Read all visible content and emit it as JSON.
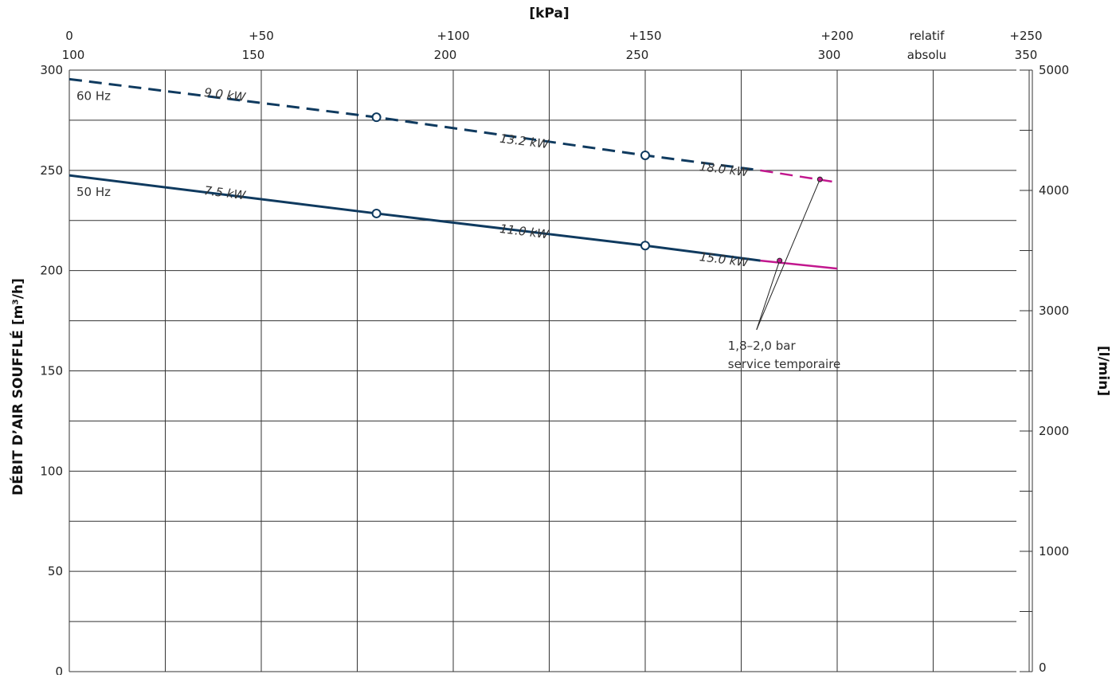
{
  "chart_data": {
    "type": "line",
    "title": "",
    "top_axis_title": "[kPa]",
    "ylabel": "DÉBIT D’AIR SOUFFLÉ  [m³/h]",
    "ylabel_right": "[l/min]",
    "xlim": [
      100,
      300
    ],
    "ylim": [
      0,
      300
    ],
    "ylim_right": [
      0,
      5000
    ],
    "grid": true,
    "x_ticks_relatif": [
      {
        "x": 100,
        "label": "0"
      },
      {
        "x": 150,
        "label": "+50"
      },
      {
        "x": 200,
        "label": "+100"
      },
      {
        "x": 250,
        "label": "+150"
      },
      {
        "x": 300,
        "label": "+200"
      },
      {
        "x": 350,
        "label": "+250"
      }
    ],
    "x_ticks_absolu": [
      {
        "x": 100,
        "label": "100"
      },
      {
        "x": 150,
        "label": "150"
      },
      {
        "x": 200,
        "label": "200"
      },
      {
        "x": 250,
        "label": "250"
      },
      {
        "x": 300,
        "label": "300"
      },
      {
        "x": 350,
        "label": "350"
      }
    ],
    "axis_row_labels": {
      "relatif": "relatif",
      "absolu": "absolu"
    },
    "y_ticks_left": [
      0,
      50,
      100,
      150,
      200,
      250,
      300
    ],
    "y_ticks_right": [
      0,
      1000,
      2000,
      3000,
      4000,
      5000
    ],
    "series": [
      {
        "name": "60 Hz",
        "style": "dashed",
        "color": "#0f3a5f",
        "temp_color": "#c2178e",
        "x": [
          100,
          180,
          250,
          280,
          300
        ],
        "y": [
          295.5,
          276.5,
          257.5,
          250,
          244
        ],
        "temp_from_x": 280,
        "markers_x": [
          180,
          250
        ],
        "power_labels": [
          {
            "text": "9.0 kW",
            "x": 135,
            "y": 287
          },
          {
            "text": "13.2 kW",
            "x": 212,
            "y": 264
          },
          {
            "text": "18.0 kW",
            "x": 264,
            "y": 250
          }
        ]
      },
      {
        "name": "50 Hz",
        "style": "solid",
        "color": "#0f3a5f",
        "temp_color": "#c2178e",
        "x": [
          100,
          180,
          250,
          280,
          300
        ],
        "y": [
          247.5,
          228.5,
          212.5,
          205,
          201
        ],
        "temp_from_x": 280,
        "markers_x": [
          180,
          250
        ],
        "power_labels": [
          {
            "text": "7.5 kW",
            "x": 135,
            "y": 238
          },
          {
            "text": "11.0 kW",
            "x": 212,
            "y": 219
          },
          {
            "text": "15.0 kW",
            "x": 264,
            "y": 205
          }
        ]
      }
    ],
    "annotation": {
      "line1": "1,8–2,0 bar",
      "line2": "service temporaire",
      "targets": [
        {
          "x": 295.5,
          "y": 245.5
        },
        {
          "x": 285,
          "y": 205
        }
      ],
      "origin": {
        "x": 279,
        "y": 170.5
      }
    }
  },
  "colors": {
    "grid": "#333333",
    "series": "#0f3a5f",
    "temporary": "#c2178e"
  }
}
